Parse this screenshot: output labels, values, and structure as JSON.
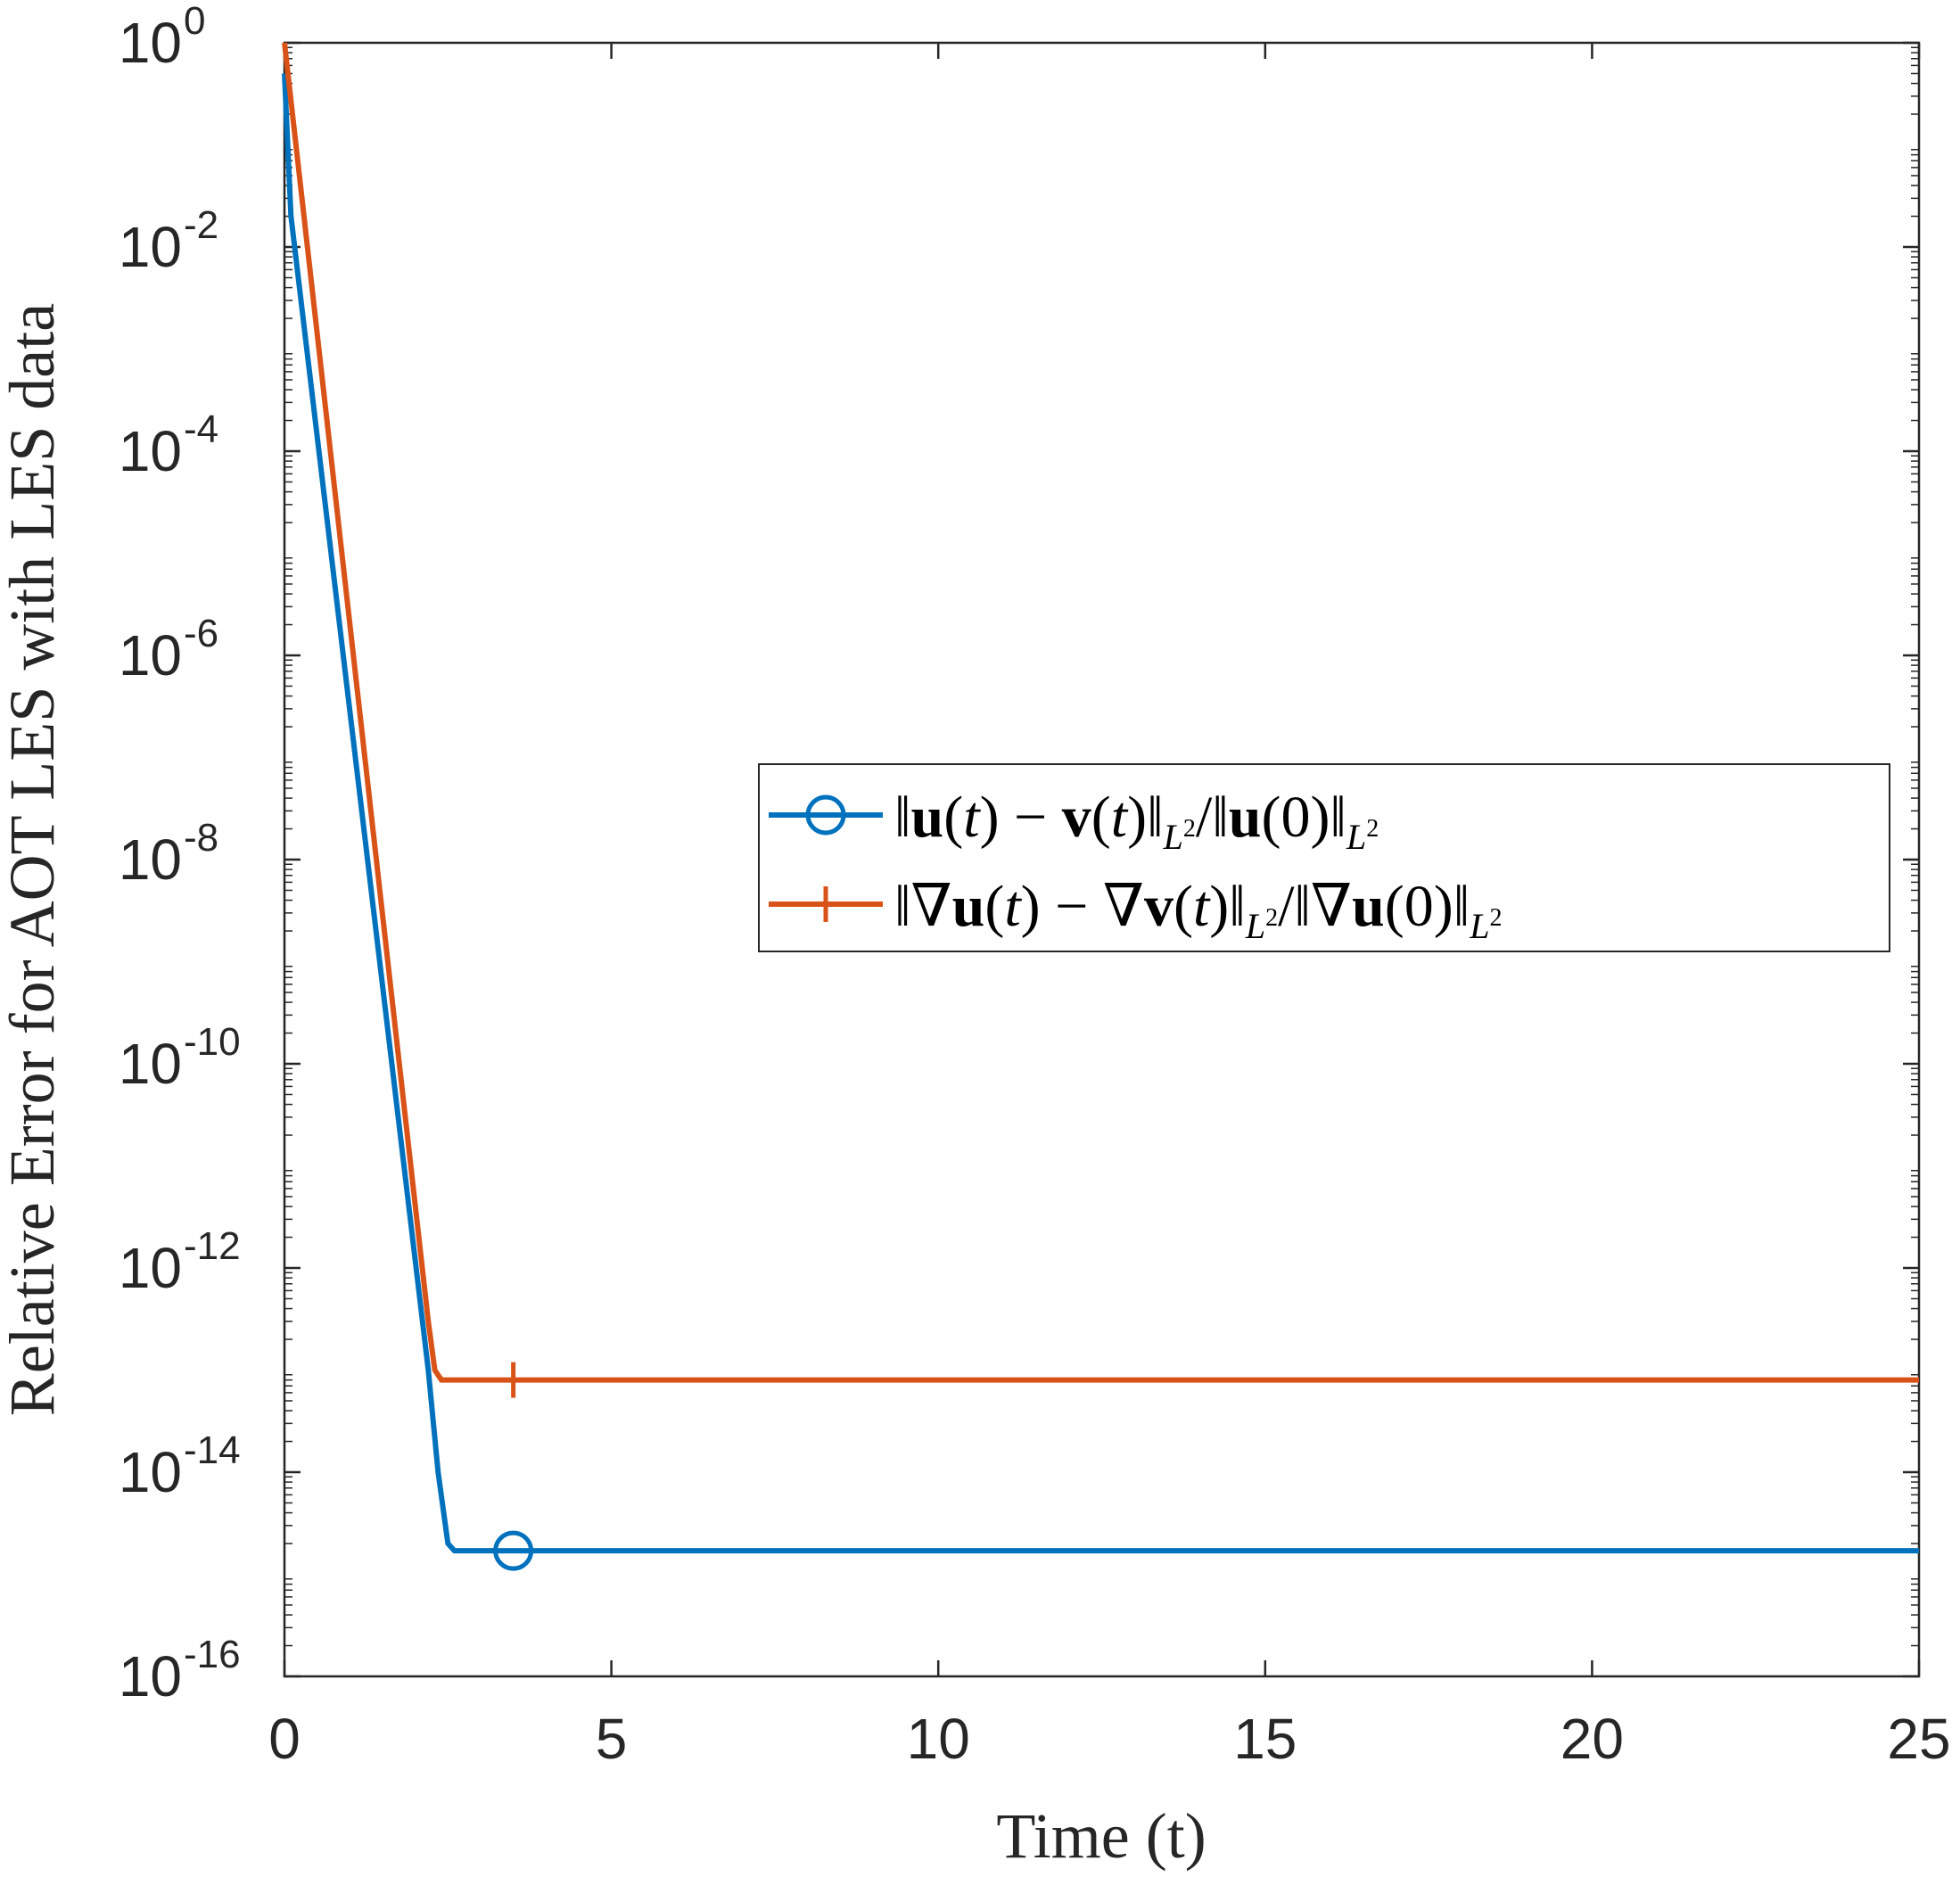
{
  "chart_data": {
    "type": "line",
    "xlabel": "Time (t)",
    "ylabel": "Relative Error for AOT LES with LES data",
    "xlim": [
      0,
      25
    ],
    "ylim": [
      1e-16,
      1
    ],
    "yscale": "log",
    "xticks": [
      0,
      5,
      10,
      15,
      20,
      25
    ],
    "xtick_labels": [
      "0",
      "5",
      "10",
      "15",
      "20",
      "25"
    ],
    "yticks": [
      {
        "base": "10",
        "exp": "0",
        "value": 1
      },
      {
        "base": "10",
        "exp": "-2",
        "value": 0.01
      },
      {
        "base": "10",
        "exp": "-4",
        "value": 0.0001
      },
      {
        "base": "10",
        "exp": "-6",
        "value": 1e-06
      },
      {
        "base": "10",
        "exp": "-8",
        "value": 1e-08
      },
      {
        "base": "10",
        "exp": "-10",
        "value": 1e-10
      },
      {
        "base": "10",
        "exp": "-12",
        "value": 1e-12
      },
      {
        "base": "10",
        "exp": "-14",
        "value": 1e-14
      },
      {
        "base": "10",
        "exp": "-16",
        "value": 1e-16
      }
    ],
    "grid": false,
    "legend_position": "center-right",
    "series": [
      {
        "name": "‖u(t) − v(t)‖L²/‖u(0)‖L²",
        "color": "#0072BD",
        "marker": "circle",
        "marker_at": {
          "x": 3.5,
          "y": 1.7e-15
        },
        "points": [
          {
            "x": 0,
            "y": 0.5
          },
          {
            "x": 0.1,
            "y": 0.02
          },
          {
            "x": 2.2,
            "y": 1e-13
          },
          {
            "x": 2.35,
            "y": 1e-14
          },
          {
            "x": 2.5,
            "y": 2e-15
          },
          {
            "x": 2.6,
            "y": 1.7e-15
          },
          {
            "x": 25,
            "y": 1.7e-15
          }
        ]
      },
      {
        "name": "‖∇u(t) − ∇v(t)‖L²/‖∇u(0)‖L²",
        "color": "#D95319",
        "marker": "plus",
        "marker_at": {
          "x": 3.5,
          "y": 8e-14
        },
        "points": [
          {
            "x": 0,
            "y": 1.0
          },
          {
            "x": 2.2,
            "y": 3e-13
          },
          {
            "x": 2.3,
            "y": 1e-13
          },
          {
            "x": 2.4,
            "y": 8e-14
          },
          {
            "x": 25,
            "y": 8e-14
          }
        ]
      }
    ]
  },
  "legend": {
    "entries": [
      {
        "key": "u_err",
        "color": "#0072BD",
        "marker": "circle"
      },
      {
        "key": "grad_err",
        "color": "#D95319",
        "marker": "plus"
      }
    ]
  }
}
